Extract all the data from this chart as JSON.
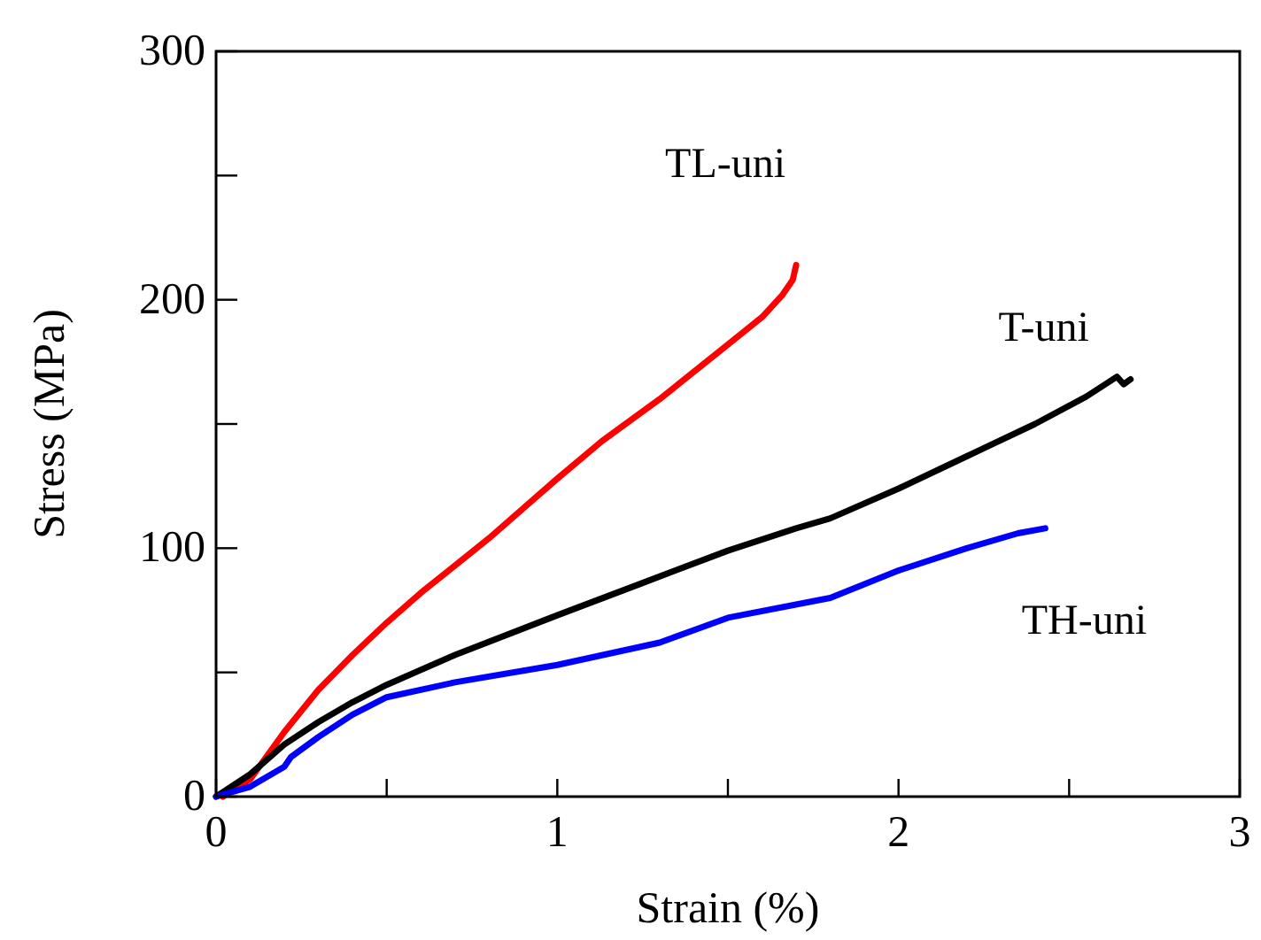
{
  "chart_data": {
    "type": "line",
    "xlabel": "Strain (%)",
    "ylabel": "Stress (MPa)",
    "xlim": [
      0,
      3
    ],
    "ylim": [
      0,
      300
    ],
    "xticks": [
      0,
      {
        "value": 0.5,
        "label": null
      },
      1,
      {
        "value": 1.5,
        "label": null
      },
      2,
      {
        "value": 2.5,
        "label": null
      },
      3
    ],
    "yticks": [
      0,
      {
        "value": 50,
        "label": null
      },
      100,
      {
        "value": 150,
        "label": null
      },
      200,
      {
        "value": 250,
        "label": null
      },
      300
    ],
    "grid": false,
    "marker": "none",
    "line_style": "solid",
    "series": [
      {
        "name": "TL-uni",
        "color": "#ff0000",
        "x": [
          0.02,
          0.1,
          0.2,
          0.3,
          0.4,
          0.5,
          0.6,
          0.7,
          0.8,
          0.9,
          1.0,
          1.13,
          1.3,
          1.5,
          1.6,
          1.66,
          1.69,
          1.7
        ],
        "values": [
          0,
          7,
          26,
          43,
          57,
          70,
          82,
          93,
          104,
          116,
          128,
          143,
          160,
          182,
          193,
          202,
          208,
          214
        ]
      },
      {
        "name": "T-uni",
        "color": "#000000",
        "x": [
          0,
          0.1,
          0.2,
          0.3,
          0.4,
          0.5,
          0.7,
          1.0,
          1.25,
          1.5,
          1.7,
          1.8,
          2.0,
          2.2,
          2.4,
          2.55,
          2.64,
          2.66,
          2.68
        ],
        "values": [
          0,
          9,
          21,
          30,
          38,
          45,
          57,
          73,
          86,
          99,
          108,
          112,
          124,
          137,
          150,
          161,
          169,
          166,
          168
        ]
      },
      {
        "name": "TH-uni",
        "color": "#0000ff",
        "x": [
          0,
          0.1,
          0.2,
          0.22,
          0.3,
          0.4,
          0.5,
          0.7,
          1.0,
          1.3,
          1.5,
          1.8,
          2.0,
          2.2,
          2.35,
          2.43
        ],
        "values": [
          0,
          4,
          12,
          16,
          24,
          33,
          40,
          46,
          53,
          62,
          72,
          80,
          91,
          100,
          106,
          108
        ]
      }
    ]
  }
}
